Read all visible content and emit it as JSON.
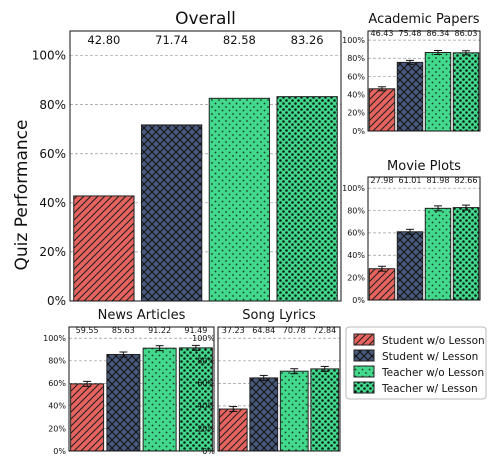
{
  "y_axis_label": "Quiz Performance",
  "colors": {
    "student_no_lesson": "#e8635e",
    "student_lesson": "#48587a",
    "teacher_no_lesson": "#42d98c",
    "teacher_lesson": "#42d98c"
  },
  "legend": {
    "items": [
      "Student w/o Lesson",
      "Student w/ Lesson",
      "Teacher w/o Lesson",
      "Teacher w/ Lesson"
    ]
  },
  "chart_data": [
    {
      "title": "Overall",
      "type": "bar",
      "categories": [
        "Student w/o Lesson",
        "Student w/ Lesson",
        "Teacher w/o Lesson",
        "Teacher w/ Lesson"
      ],
      "values": [
        42.8,
        71.74,
        82.58,
        83.26
      ],
      "value_labels": [
        "42.80",
        "71.74",
        "82.58",
        "83.26"
      ],
      "error_bars": false,
      "ylim": [
        0,
        110
      ],
      "yticks": [
        "0%",
        "20%",
        "40%",
        "60%",
        "80%",
        "100%"
      ],
      "grid": true
    },
    {
      "title": "Academic Papers",
      "type": "bar",
      "categories": [
        "Student w/o Lesson",
        "Student w/ Lesson",
        "Teacher w/o Lesson",
        "Teacher w/ Lesson"
      ],
      "values": [
        46.43,
        75.48,
        86.34,
        86.03
      ],
      "value_labels": [
        "46.43",
        "75.48",
        "86.34",
        "86.03"
      ],
      "error_bars": true,
      "ylim": [
        0,
        110
      ],
      "yticks": [
        "0%",
        "20%",
        "40%",
        "60%",
        "80%",
        "100%"
      ],
      "grid": true
    },
    {
      "title": "Movie Plots",
      "type": "bar",
      "categories": [
        "Student w/o Lesson",
        "Student w/ Lesson",
        "Teacher w/o Lesson",
        "Teacher w/ Lesson"
      ],
      "values": [
        27.98,
        61.01,
        81.98,
        82.66
      ],
      "value_labels": [
        "27.98",
        "61.01",
        "81.98",
        "82.66"
      ],
      "error_bars": true,
      "ylim": [
        0,
        110
      ],
      "yticks": [
        "0%",
        "20%",
        "40%",
        "60%",
        "80%",
        "100%"
      ],
      "grid": true
    },
    {
      "title": "News Articles",
      "type": "bar",
      "categories": [
        "Student w/o Lesson",
        "Student w/ Lesson",
        "Teacher w/o Lesson",
        "Teacher w/ Lesson"
      ],
      "values": [
        59.55,
        85.63,
        91.22,
        91.49
      ],
      "value_labels": [
        "59.55",
        "85.63",
        "91.22",
        "91.49"
      ],
      "error_bars": true,
      "ylim": [
        0,
        110
      ],
      "yticks": [
        "0%",
        "20%",
        "40%",
        "60%",
        "80%",
        "100%"
      ],
      "grid": true
    },
    {
      "title": "Song Lyrics",
      "type": "bar",
      "categories": [
        "Student w/o Lesson",
        "Student w/ Lesson",
        "Teacher w/o Lesson",
        "Teacher w/ Lesson"
      ],
      "values": [
        37.23,
        64.84,
        70.78,
        72.84
      ],
      "value_labels": [
        "37.23",
        "64.84",
        "70.78",
        "72.84"
      ],
      "error_bars": true,
      "ylim": [
        0,
        110
      ],
      "yticks": [
        "0%",
        "20%",
        "40%",
        "60%",
        "80%",
        "100%"
      ],
      "grid": true
    }
  ]
}
